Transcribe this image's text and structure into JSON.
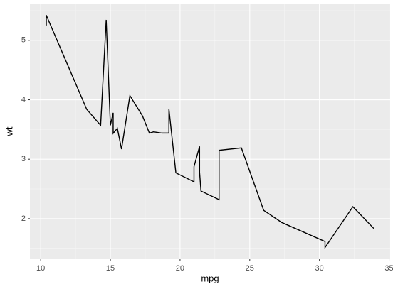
{
  "chart_data": {
    "type": "line",
    "x_label": "mpg",
    "y_label": "wt",
    "x": [
      10.4,
      10.4,
      13.3,
      14.3,
      14.7,
      15.0,
      15.2,
      15.2,
      15.5,
      15.8,
      16.4,
      17.3,
      17.8,
      18.1,
      18.7,
      19.2,
      19.2,
      19.7,
      21.0,
      21.0,
      21.4,
      21.4,
      21.5,
      22.8,
      22.8,
      24.4,
      26.0,
      27.3,
      30.4,
      30.4,
      32.4,
      33.9
    ],
    "values": [
      5.25,
      5.424,
      3.84,
      3.57,
      5.345,
      3.57,
      3.78,
      3.435,
      3.52,
      3.17,
      4.07,
      3.73,
      3.44,
      3.46,
      3.44,
      3.44,
      3.845,
      2.77,
      2.62,
      2.875,
      3.215,
      2.78,
      2.465,
      2.32,
      3.15,
      3.19,
      2.14,
      1.935,
      1.615,
      1.513,
      2.2,
      1.835
    ],
    "color": "#000000",
    "xlim": [
      9.225,
      35.075
    ],
    "xticks": [
      10,
      15,
      20,
      25,
      30,
      35
    ],
    "ylim": [
      1.3175,
      5.6195
    ],
    "yticks": [
      2,
      3,
      4,
      5
    ],
    "grid": true
  }
}
